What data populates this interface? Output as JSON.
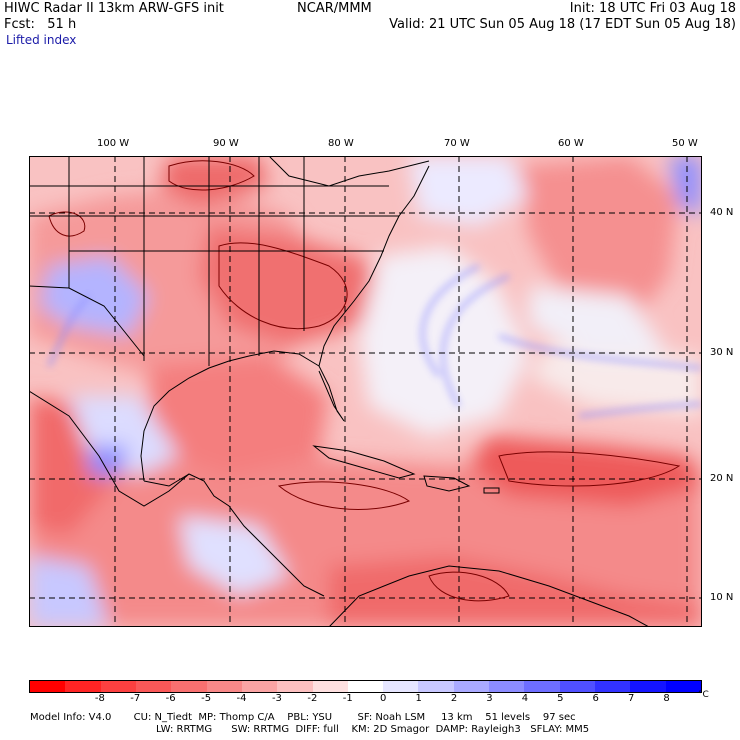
{
  "header": {
    "line1_left": "HIWC Radar II 13km ARW-GFS init",
    "line1_mid": "NCAR/MMM",
    "line1_right": "Init: 18 UTC Fri 03 Aug 18",
    "line2_left": "Fcst:   51 h",
    "line2_right": "Valid: 21 UTC Sun 05 Aug 18 (17 EDT Sun 05 Aug 18)",
    "line3_left": "Lifted index"
  },
  "map": {
    "longitude_labels": [
      "100 W",
      "90 W",
      "80 W",
      "70 W",
      "60 W",
      "50 W"
    ],
    "latitude_labels": [
      "40 N",
      "30 N",
      "20 N",
      "10 N"
    ],
    "colors": {
      "land_border": "#000000",
      "contour": "#7a0000",
      "grid": "#000000"
    }
  },
  "colorbar": {
    "labels": [
      "-8",
      "-7",
      "-6",
      "-5",
      "-4",
      "-3",
      "-2",
      "-1",
      "0",
      "1",
      "2",
      "3",
      "4",
      "5",
      "6",
      "7",
      "8"
    ],
    "unit": "°C",
    "colors": [
      "#ff0000",
      "#ff2424",
      "#fc4040",
      "#fa5858",
      "#f87070",
      "#f88888",
      "#faa4a4",
      "#fcc0c0",
      "#fee0e0",
      "#ffffff",
      "#e6e6ff",
      "#c8c8ff",
      "#aaaaff",
      "#8c8cff",
      "#6e6eff",
      "#5050ff",
      "#3232ff",
      "#1414ff",
      "#0000ff"
    ]
  },
  "footer": {
    "line1": "Model Info: V4.0       CU: N_Tiedt  MP: Thomp C/A    PBL: YSU        SF: Noah LSM     13 km    51 levels    97 sec",
    "line2": "LW: RRTMG      SW: RRTMG  DIFF: full    KM: 2D Smagor  DAMP: Rayleigh3   SFLAY: MM5"
  }
}
